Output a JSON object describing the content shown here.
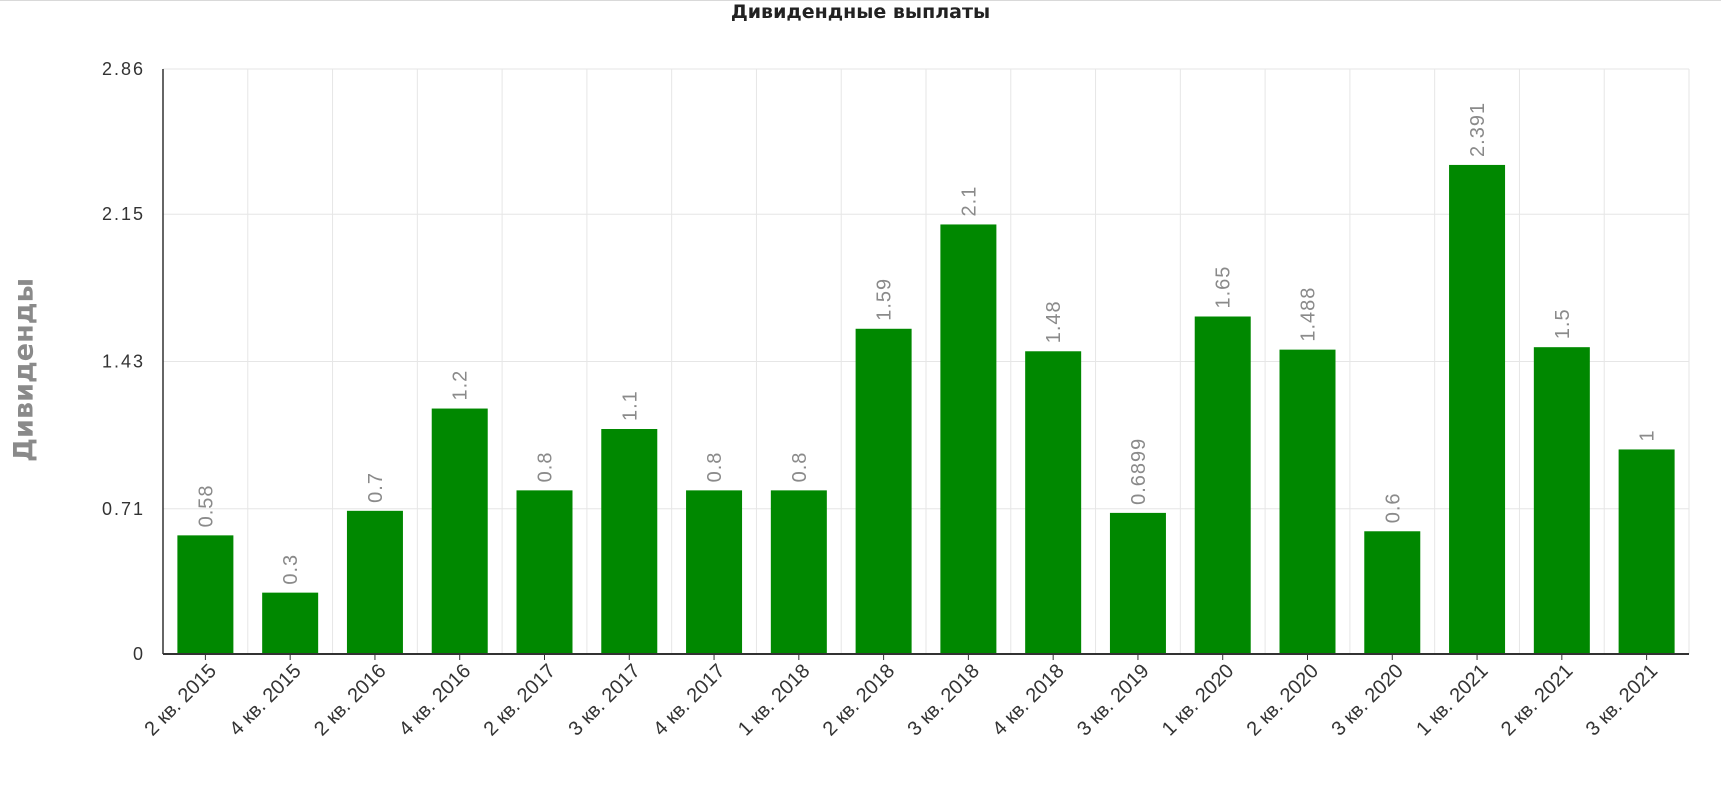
{
  "chart_data": {
    "type": "bar",
    "title": "Дивидендные выплаты",
    "xlabel": "",
    "ylabel": "Дивиденды",
    "categories": [
      "2 кв. 2015",
      "4 кв. 2015",
      "2 кв. 2016",
      "4 кв. 2016",
      "2 кв. 2017",
      "3 кв. 2017",
      "4 кв. 2017",
      "1 кв. 2018",
      "2 кв. 2018",
      "3 кв. 2018",
      "4 кв. 2018",
      "3 кв. 2019",
      "1 кв. 2020",
      "2 кв. 2020",
      "3 кв. 2020",
      "1 кв. 2021",
      "2 кв. 2021",
      "3 кв. 2021"
    ],
    "values": [
      0.58,
      0.3,
      0.7,
      1.2,
      0.8,
      1.1,
      0.8,
      0.8,
      1.59,
      2.1,
      1.48,
      0.6899,
      1.65,
      1.488,
      0.6,
      2.391,
      1.5,
      1
    ],
    "data_labels": [
      "0.58",
      "0.3",
      "0.7",
      "1.2",
      "0.8",
      "1.1",
      "0.8",
      "0.8",
      "1.59",
      "2.1",
      "1.48",
      "0.6899",
      "1.65",
      "1.488",
      "0.6",
      "2.391",
      "1.5",
      "1"
    ],
    "y_ticks": [
      0,
      0.71,
      1.43,
      2.15,
      2.86
    ],
    "y_tick_labels": [
      "0",
      "0.71",
      "1.43",
      "2.15",
      "2.86"
    ],
    "ylim": [
      0,
      2.86
    ],
    "grid": true,
    "legend": "none",
    "colors": {
      "bar": "#008800",
      "grid": "#e6e6e6",
      "axis": "#333333",
      "label": "#8a8a8a"
    }
  }
}
